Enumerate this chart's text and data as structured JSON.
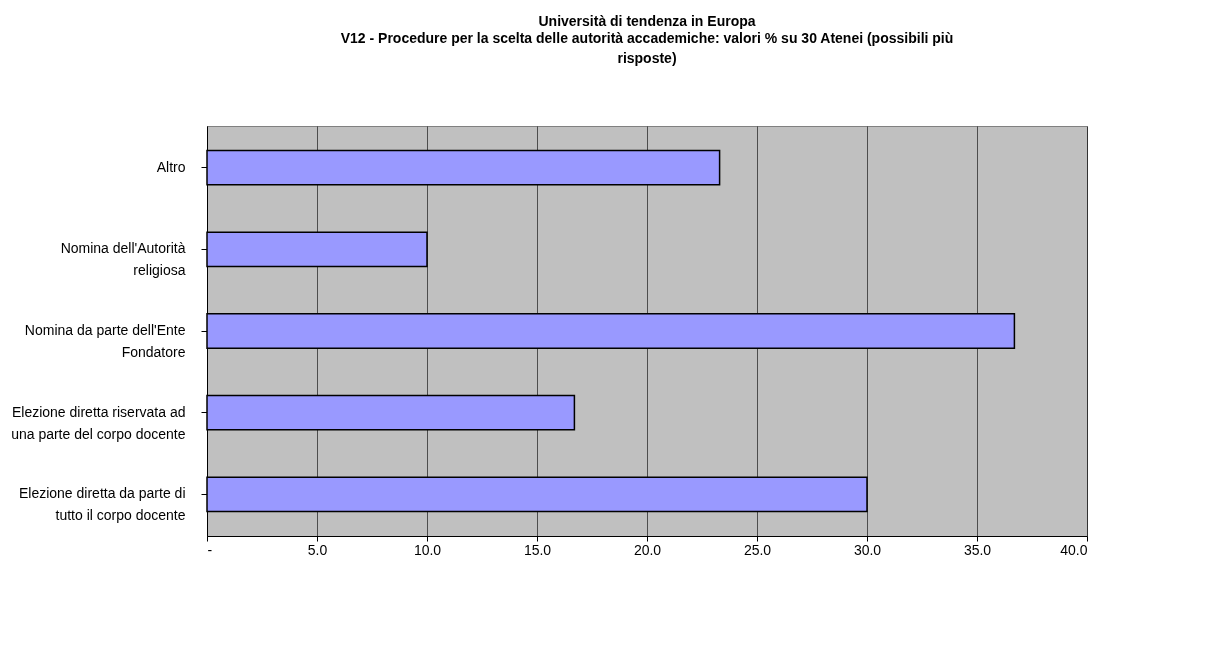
{
  "chart_data": {
    "type": "bar",
    "orientation": "horizontal",
    "title": "Università di  tendenza in Europa",
    "subtitle": "V12 - Procedure per la scelta delle autorità accademiche: valori % su 30 Atenei (possibili più risposte)",
    "categories": [
      "Altro",
      "Nomina  dell'Autorità religiosa",
      "Nomina da parte dell'Ente Fondatore",
      "Elezione diretta riservata ad una parte del corpo docente",
      "Elezione diretta da parte di tutto il corpo docente"
    ],
    "values": [
      23.3,
      10.0,
      36.7,
      16.7,
      30.0
    ],
    "color": "#9999ff",
    "xlim": [
      0,
      40
    ],
    "xticks": [
      {
        "value": 0,
        "label": "-"
      },
      {
        "value": 5,
        "label": "5.0"
      },
      {
        "value": 10,
        "label": "10.0"
      },
      {
        "value": 15,
        "label": "15.0"
      },
      {
        "value": 20,
        "label": "20.0"
      },
      {
        "value": 25,
        "label": "25.0"
      },
      {
        "value": 30,
        "label": "30.0"
      },
      {
        "value": 35,
        "label": "35.0"
      },
      {
        "value": 40,
        "label": "40.0"
      }
    ],
    "grid": "x"
  }
}
